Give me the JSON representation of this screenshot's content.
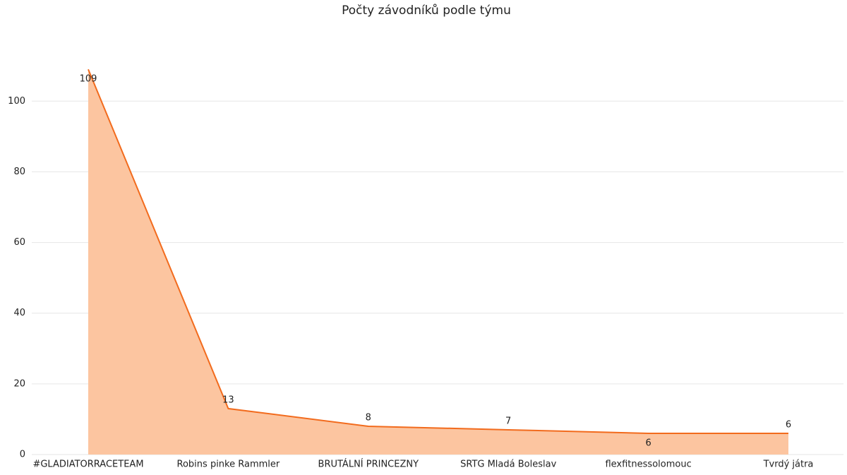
{
  "chart_data": {
    "type": "area",
    "title": "Počty závodníků podle týmu",
    "categories": [
      "#GLADIATORRACETEAM",
      "Robins pinke Rammler",
      "BRUTÁLNÍ PRINCEZNY",
      "SRTG Mladá Boleslav",
      "flexfitnessolomouc",
      "Tvrdý játra"
    ],
    "values": [
      109,
      13,
      8,
      7,
      6,
      6
    ],
    "color": "#f26b1d",
    "fill": "#fcc5a0",
    "ylim": [
      0,
      110
    ],
    "yticks": [
      0,
      20,
      40,
      60,
      80,
      100
    ],
    "grid": true
  }
}
